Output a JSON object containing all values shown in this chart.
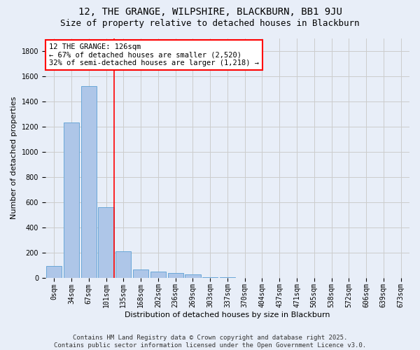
{
  "title": "12, THE GRANGE, WILPSHIRE, BLACKBURN, BB1 9JU",
  "subtitle": "Size of property relative to detached houses in Blackburn",
  "xlabel": "Distribution of detached houses by size in Blackburn",
  "ylabel": "Number of detached properties",
  "categories": [
    "0sqm",
    "34sqm",
    "67sqm",
    "101sqm",
    "135sqm",
    "168sqm",
    "202sqm",
    "236sqm",
    "269sqm",
    "303sqm",
    "337sqm",
    "370sqm",
    "404sqm",
    "437sqm",
    "471sqm",
    "505sqm",
    "538sqm",
    "572sqm",
    "606sqm",
    "639sqm",
    "673sqm"
  ],
  "values": [
    90,
    1235,
    1520,
    560,
    210,
    65,
    45,
    35,
    28,
    5,
    5,
    0,
    0,
    0,
    0,
    0,
    0,
    0,
    0,
    0,
    0
  ],
  "bar_color": "#aec6e8",
  "bar_edge_color": "#5a9fd4",
  "vline_color": "red",
  "annotation_text": "12 THE GRANGE: 126sqm\n← 67% of detached houses are smaller (2,520)\n32% of semi-detached houses are larger (1,218) →",
  "annotation_box_color": "white",
  "annotation_box_edge_color": "red",
  "ylim": [
    0,
    1900
  ],
  "yticks": [
    0,
    200,
    400,
    600,
    800,
    1000,
    1200,
    1400,
    1600,
    1800
  ],
  "grid_color": "#cccccc",
  "bg_color": "#e8eef8",
  "footer_line1": "Contains HM Land Registry data © Crown copyright and database right 2025.",
  "footer_line2": "Contains public sector information licensed under the Open Government Licence v3.0.",
  "title_fontsize": 10,
  "subtitle_fontsize": 9,
  "axis_label_fontsize": 8,
  "tick_fontsize": 7,
  "annotation_fontsize": 7.5,
  "footer_fontsize": 6.5
}
